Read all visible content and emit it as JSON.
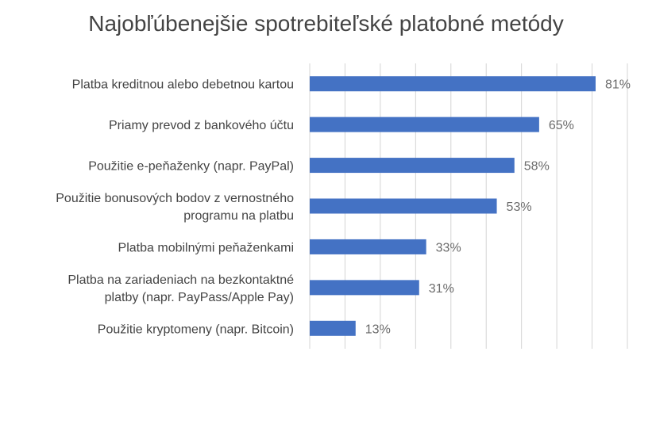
{
  "chart_data": {
    "type": "bar",
    "orientation": "horizontal",
    "title": "Najobľúbenejšie spotrebiteľské platobné metódy",
    "categories": [
      [
        "Platba kreditnou alebo debetnou kartou"
      ],
      [
        "Priamy prevod z bankového účtu"
      ],
      [
        "Použitie e-peňaženky (napr. PayPal)"
      ],
      [
        "Použitie bonusových bodov z vernostného",
        "programu na platbu"
      ],
      [
        "Platba mobilnými peňaženkami"
      ],
      [
        "Platba na zariadeniach na bezkontaktné",
        "platby (napr. PayPass/Apple Pay)"
      ],
      [
        "Použitie kryptomeny (napr. Bitcoin)"
      ]
    ],
    "values": [
      81,
      65,
      58,
      53,
      33,
      31,
      13
    ],
    "data_labels": [
      "81%",
      "65%",
      "58%",
      "53%",
      "33%",
      "31%",
      "13%"
    ],
    "value_unit": "%",
    "xlim": [
      0,
      90
    ],
    "grid_step": 10,
    "grid": true,
    "legend": false,
    "bar_color": "#4472C4"
  }
}
